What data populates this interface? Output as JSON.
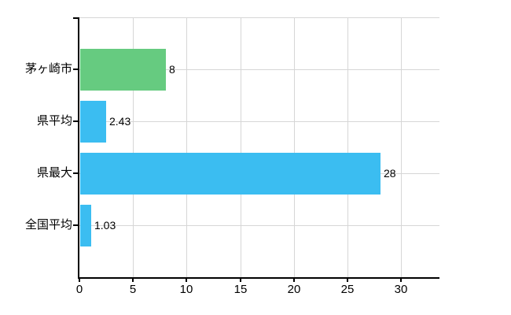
{
  "chart_data": {
    "type": "bar",
    "orientation": "horizontal",
    "title": "",
    "xlabel": "",
    "ylabel": "",
    "categories": [
      "茅ヶ崎市",
      "県平均",
      "県最大",
      "全国平均"
    ],
    "values": [
      8,
      2.43,
      28,
      1.03
    ],
    "value_labels": [
      "8",
      "2.43",
      "28",
      "1.03"
    ],
    "bar_colors": [
      "#66cb80",
      "#3bbdf1",
      "#3bbdf1",
      "#3bbdf1"
    ],
    "x_ticks": [
      0,
      5,
      10,
      15,
      20,
      25,
      30
    ],
    "x_tick_labels": [
      "0",
      "5",
      "10",
      "15",
      "20",
      "25",
      "30"
    ],
    "xlim": [
      0,
      33.6
    ],
    "grid": true,
    "legend": "none",
    "colors": {
      "bar_green": "#66cb80",
      "bar_blue": "#3bbdf1",
      "grid": "#d6d6d6",
      "axis": "#000000",
      "text": "#000000",
      "background": "#ffffff"
    }
  }
}
